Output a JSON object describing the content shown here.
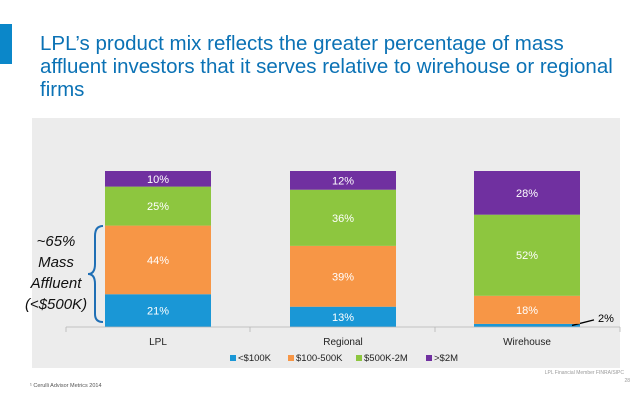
{
  "slide": {
    "title": "LPL’s product mix reflects the greater percentage of mass affluent investors that it serves relative to wirehouse or regional firms",
    "footnote": "¹ Cerulli Advisor Metrics 2014",
    "member_note": "LPL Financial  Member FINRA/SIPC",
    "page_number": "28",
    "accent_color": "#0b87c9"
  },
  "chart_data": {
    "type": "bar",
    "stacked": true,
    "categories": [
      "LPL",
      "Regional",
      "Wirehouse"
    ],
    "series": [
      {
        "name": "<$100K",
        "values": [
          21,
          13,
          2
        ],
        "labels": [
          "21%",
          "13%",
          "2%"
        ],
        "color": "#1a97d6"
      },
      {
        "name": "$100-500K",
        "values": [
          44,
          39,
          18
        ],
        "labels": [
          "44%",
          "39%",
          "18%"
        ],
        "color": "#f79646"
      },
      {
        "name": "$500K-2M",
        "values": [
          25,
          36,
          52
        ],
        "labels": [
          "25%",
          "36%",
          "52%"
        ],
        "color": "#8dc63f"
      },
      {
        "name": ">$2M",
        "values": [
          10,
          12,
          28
        ],
        "labels": [
          "10%",
          "12%",
          "28%"
        ],
        "color": "#7030a0"
      }
    ],
    "ylim": [
      0,
      100
    ],
    "legend_position": "bottom",
    "grid": false,
    "annotation": {
      "lines": [
        "~65%",
        "Mass",
        "Affluent",
        "(<$500K)"
      ],
      "brace_color": "#1f6fb5"
    }
  }
}
